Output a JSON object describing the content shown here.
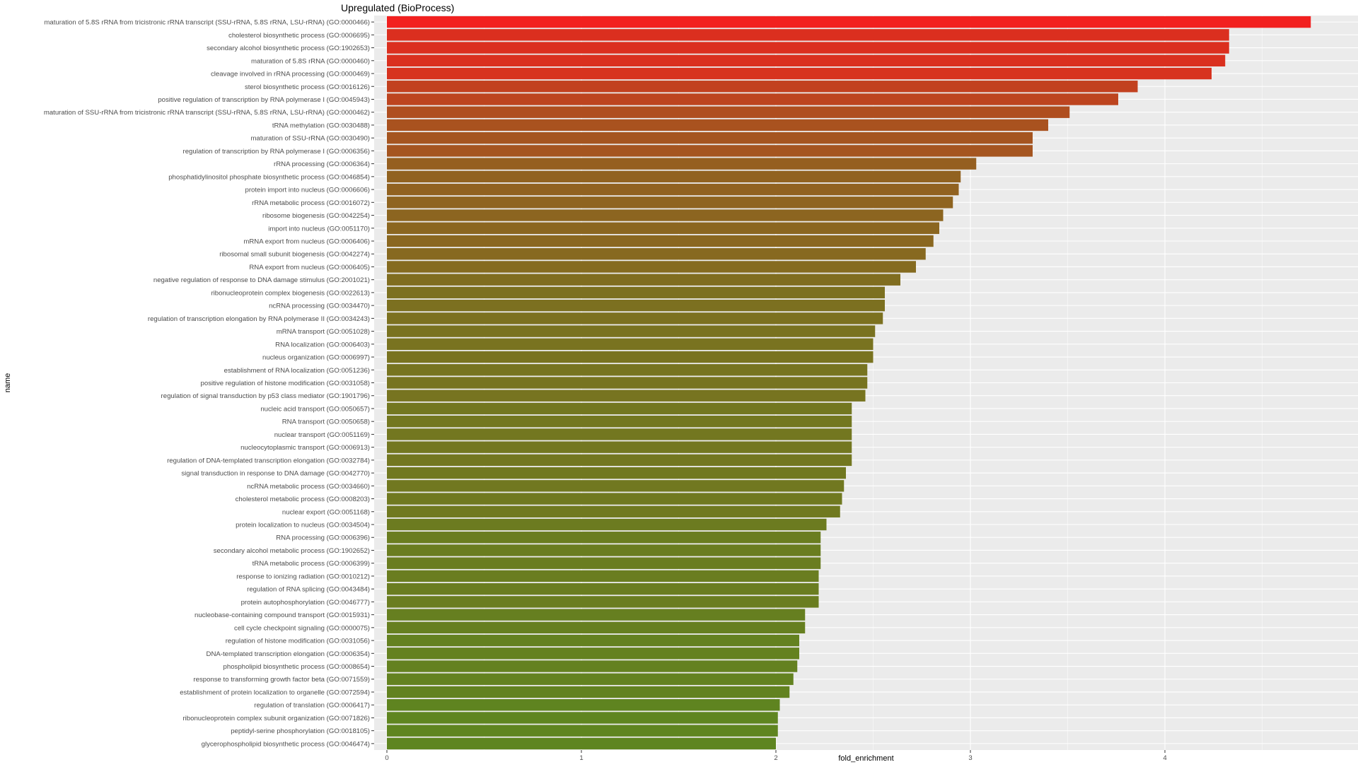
{
  "chart_data": {
    "type": "bar",
    "orientation": "horizontal",
    "title": "Upregulated (BioProcess)",
    "xlabel": "fold_enrichment",
    "ylabel": "name",
    "xlim": [
      0,
      5
    ],
    "xticks": [
      0,
      1,
      2,
      3,
      4
    ],
    "grid": true,
    "legend": "none",
    "color_low": "#5e8520",
    "color_high": "#f2201f",
    "categories": [
      "maturation of 5.8S rRNA from tricistronic rRNA transcript (SSU-rRNA, 5.8S rRNA, LSU-rRNA) (GO:0000466)",
      "cholesterol biosynthetic process (GO:0006695)",
      "secondary alcohol biosynthetic process (GO:1902653)",
      "maturation of 5.8S rRNA (GO:0000460)",
      "cleavage involved in rRNA processing (GO:0000469)",
      "sterol biosynthetic process (GO:0016126)",
      "positive regulation of transcription by RNA polymerase I (GO:0045943)",
      "maturation of SSU-rRNA from tricistronic rRNA transcript (SSU-rRNA, 5.8S rRNA, LSU-rRNA) (GO:0000462)",
      "tRNA methylation (GO:0030488)",
      "maturation of SSU-rRNA (GO:0030490)",
      "regulation of transcription by RNA polymerase I (GO:0006356)",
      "rRNA processing (GO:0006364)",
      "phosphatidylinositol phosphate biosynthetic process (GO:0046854)",
      "protein import into nucleus (GO:0006606)",
      "rRNA metabolic process (GO:0016072)",
      "ribosome biogenesis (GO:0042254)",
      "import into nucleus (GO:0051170)",
      "mRNA export from nucleus (GO:0006406)",
      "ribosomal small subunit biogenesis (GO:0042274)",
      "RNA export from nucleus (GO:0006405)",
      "negative regulation of response to DNA damage stimulus (GO:2001021)",
      "ribonucleoprotein complex biogenesis (GO:0022613)",
      "ncRNA processing (GO:0034470)",
      "regulation of transcription elongation by RNA polymerase II (GO:0034243)",
      "mRNA transport (GO:0051028)",
      "RNA localization (GO:0006403)",
      "nucleus organization (GO:0006997)",
      "establishment of RNA localization (GO:0051236)",
      "positive regulation of histone modification (GO:0031058)",
      "regulation of signal transduction by p53 class mediator (GO:1901796)",
      "nucleic acid transport (GO:0050657)",
      "RNA transport (GO:0050658)",
      "nuclear transport (GO:0051169)",
      "nucleocytoplasmic transport (GO:0006913)",
      "regulation of DNA-templated transcription elongation (GO:0032784)",
      "signal transduction in response to DNA damage (GO:0042770)",
      "ncRNA metabolic process (GO:0034660)",
      "cholesterol metabolic process (GO:0008203)",
      "nuclear export (GO:0051168)",
      "protein localization to nucleus (GO:0034504)",
      "RNA processing (GO:0006396)",
      "secondary alcohol metabolic process (GO:1902652)",
      "tRNA metabolic process (GO:0006399)",
      "response to ionizing radiation (GO:0010212)",
      "regulation of RNA splicing (GO:0043484)",
      "protein autophosphorylation (GO:0046777)",
      "nucleobase-containing compound transport (GO:0015931)",
      "cell cycle checkpoint signaling (GO:0000075)",
      "regulation of histone modification (GO:0031056)",
      "DNA-templated transcription elongation (GO:0006354)",
      "phospholipid biosynthetic process (GO:0008654)",
      "response to transforming growth factor beta (GO:0071559)",
      "establishment of protein localization to organelle (GO:0072594)",
      "regulation of translation (GO:0006417)",
      "ribonucleoprotein complex subunit organization (GO:0071826)",
      "peptidyl-serine phosphorylation (GO:0018105)",
      "glycerophospholipid biosynthetic process (GO:0046474)"
    ],
    "values": [
      4.75,
      4.33,
      4.33,
      4.31,
      4.24,
      3.86,
      3.76,
      3.51,
      3.4,
      3.32,
      3.32,
      3.03,
      2.95,
      2.94,
      2.91,
      2.86,
      2.84,
      2.81,
      2.77,
      2.72,
      2.64,
      2.56,
      2.56,
      2.55,
      2.51,
      2.5,
      2.5,
      2.47,
      2.47,
      2.46,
      2.39,
      2.39,
      2.39,
      2.39,
      2.39,
      2.36,
      2.35,
      2.34,
      2.33,
      2.26,
      2.23,
      2.23,
      2.23,
      2.22,
      2.22,
      2.22,
      2.15,
      2.15,
      2.12,
      2.12,
      2.11,
      2.09,
      2.07,
      2.02,
      2.01,
      2.01,
      2.0
    ]
  }
}
